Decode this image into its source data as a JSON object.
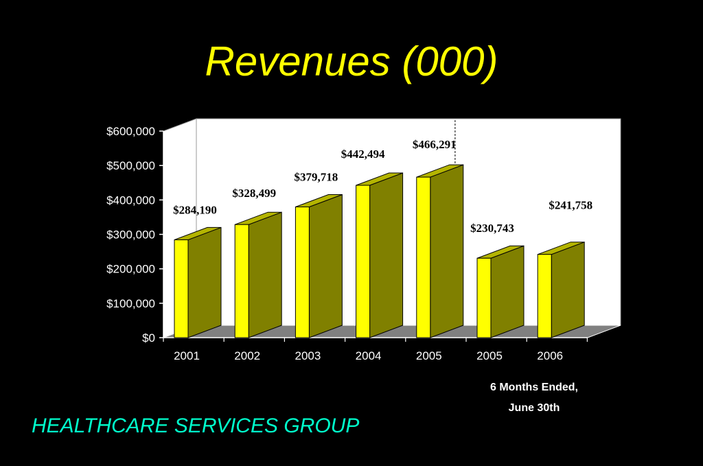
{
  "slide": {
    "title": "Revenues (000)",
    "company": "HEALTHCARE SERVICES GROUP",
    "note_line1": "6 Months Ended,",
    "note_line2": "June 30th"
  },
  "colors": {
    "background": "#000000",
    "title": "#ffff00",
    "company": "#00ffcc",
    "bar_front": "#ffff00",
    "bar_side": "#808000",
    "bar_top": "#b4b400",
    "floor": "#808080",
    "wall": "#ffffff",
    "axis_text": "#ffffff"
  },
  "chart_data": {
    "type": "bar",
    "title": "",
    "xlabel": "",
    "ylabel": "",
    "categories": [
      "2001",
      "2002",
      "2003",
      "2004",
      "2005",
      "2005",
      "2006"
    ],
    "values": [
      284190,
      328499,
      379718,
      442494,
      466291,
      230743,
      241758
    ],
    "data_labels": [
      "$284,190",
      "$328,499",
      "$379,718",
      "$442,494",
      "$466,291",
      "$230,743",
      "$241,758"
    ],
    "ylim": [
      0,
      600000
    ],
    "yticks": [
      0,
      100000,
      200000,
      300000,
      400000,
      500000,
      600000
    ],
    "ytick_labels": [
      "$0",
      "$100,000",
      "$200,000",
      "$300,000",
      "$400,000",
      "$500,000",
      "$600,000"
    ],
    "grid": false,
    "legend": "none",
    "three_d": true,
    "separator_after_index": 4
  }
}
